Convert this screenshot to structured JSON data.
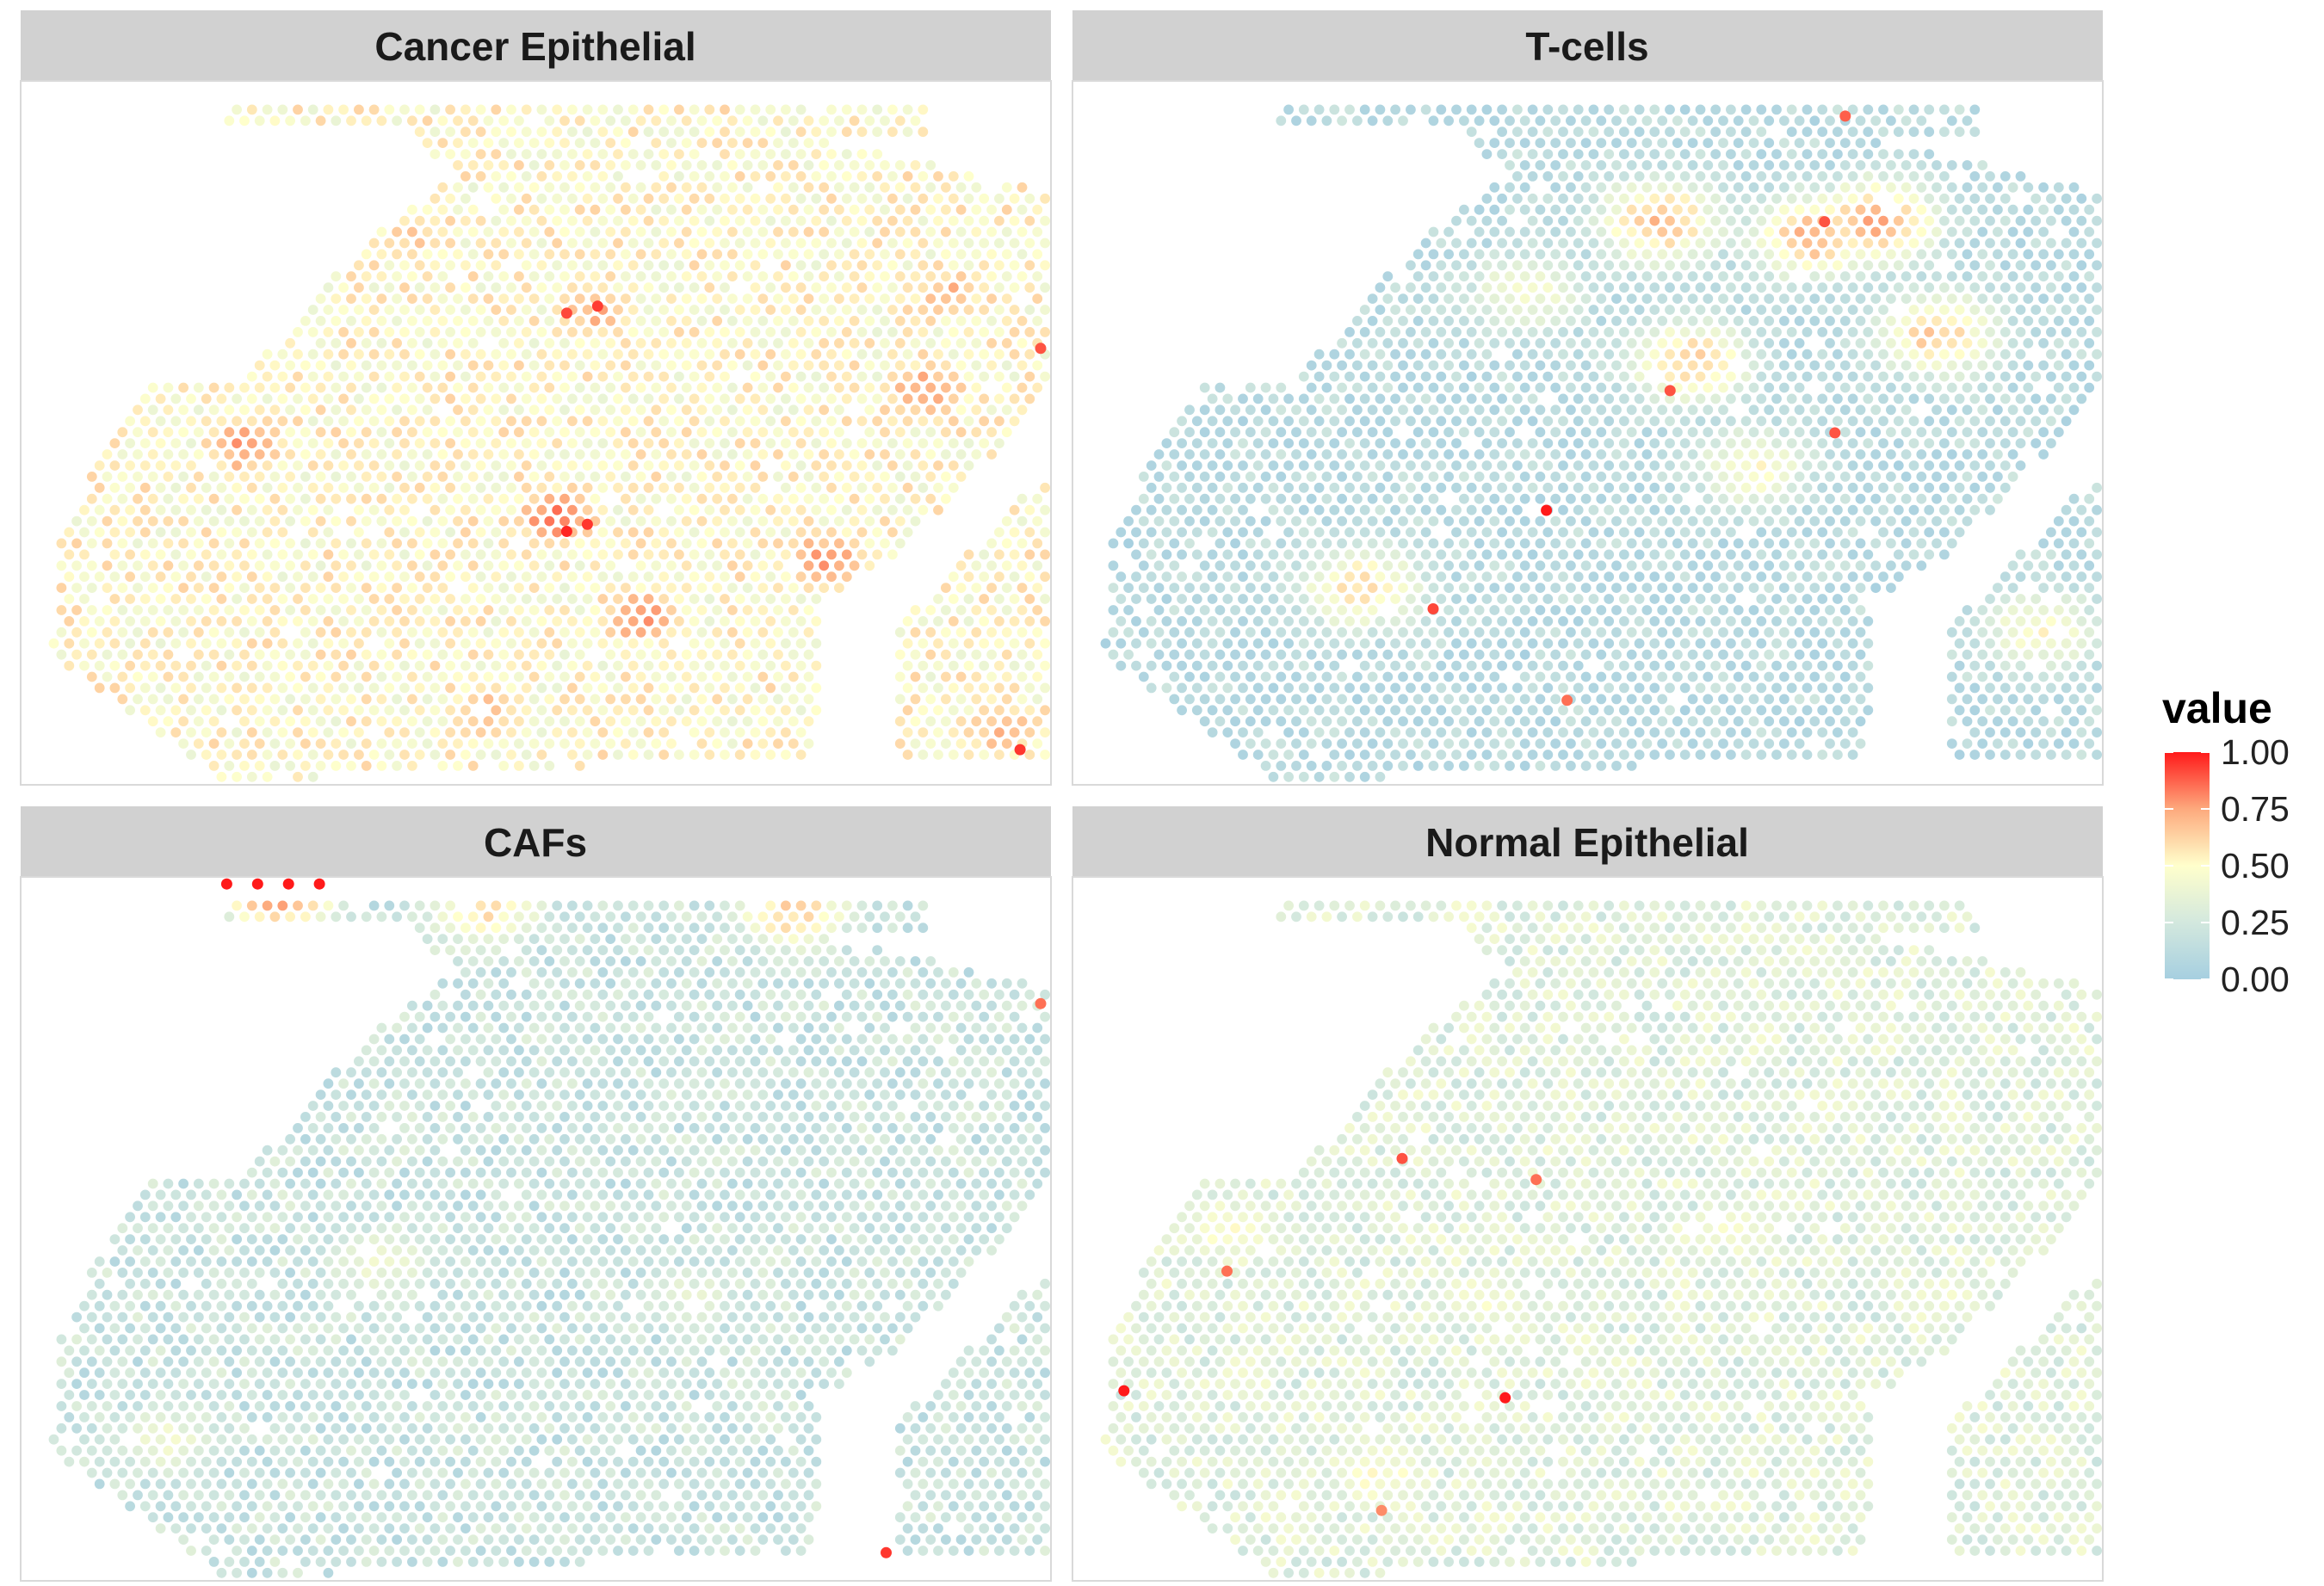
{
  "chart_data": {
    "type": "scatter",
    "description_kind": "faceted spatial spot map",
    "facets": [
      "Cancer Epithelial",
      "T-cells",
      "CAFs",
      "Normal Epithelial"
    ],
    "facet_grid": {
      "rows": 2,
      "cols": 2
    },
    "color_scale": {
      "title": "value",
      "limits": [
        0,
        1
      ],
      "breaks": [
        0,
        0.25,
        0.5,
        0.75,
        1
      ],
      "break_labels": [
        "0.00",
        "0.25",
        "0.50",
        "0.75",
        "1.00"
      ],
      "colors": [
        "#a6cfe0",
        "#d3e8de",
        "#ffffcc",
        "#fda97d",
        "#ff1a1a"
      ],
      "legend_position": "right"
    },
    "axes_shown": false,
    "grid": false,
    "panel_background": "#ffffff",
    "panel_border": "#d9d9d9",
    "strip_fill": "#d1d1d1",
    "field_summary": {
      "Cancer Epithelial": {
        "overall_level": 0.5,
        "hotspots": [
          {
            "x": 0.22,
            "y": 0.52,
            "value": 0.78
          },
          {
            "x": 0.52,
            "y": 0.62,
            "value": 0.82
          },
          {
            "x": 0.6,
            "y": 0.76,
            "value": 0.78
          },
          {
            "x": 0.78,
            "y": 0.68,
            "value": 0.78
          },
          {
            "x": 0.56,
            "y": 0.33,
            "value": 0.72
          },
          {
            "x": 0.38,
            "y": 0.22,
            "value": 0.65
          },
          {
            "x": 0.88,
            "y": 0.44,
            "value": 0.78
          },
          {
            "x": 0.9,
            "y": 0.3,
            "value": 0.7
          },
          {
            "x": 0.45,
            "y": 0.9,
            "value": 0.7
          },
          {
            "x": 0.2,
            "y": 0.4,
            "value": 0.68
          },
          {
            "x": 0.95,
            "y": 0.92,
            "value": 0.7
          }
        ]
      },
      "T-cells": {
        "overall_level": 0.1,
        "hotspots": [
          {
            "x": 0.57,
            "y": 0.2,
            "value": 0.7
          },
          {
            "x": 0.78,
            "y": 0.2,
            "value": 0.75
          },
          {
            "x": 0.6,
            "y": 0.4,
            "value": 0.65
          },
          {
            "x": 0.84,
            "y": 0.36,
            "value": 0.65
          },
          {
            "x": 0.28,
            "y": 0.72,
            "value": 0.6
          },
          {
            "x": 0.72,
            "y": 0.22,
            "value": 0.72
          },
          {
            "x": 0.44,
            "y": 0.3,
            "value": 0.45
          },
          {
            "x": 0.66,
            "y": 0.55,
            "value": 0.5
          },
          {
            "x": 0.94,
            "y": 0.78,
            "value": 0.5
          }
        ]
      },
      "CAFs": {
        "overall_level": 0.2,
        "hotspots": [
          {
            "x": 0.25,
            "y": 0.01,
            "value": 0.9
          },
          {
            "x": 0.45,
            "y": 0.04,
            "value": 0.6
          },
          {
            "x": 0.75,
            "y": 0.05,
            "value": 0.62
          },
          {
            "x": 0.14,
            "y": 0.8,
            "value": 0.4
          },
          {
            "x": 0.65,
            "y": 0.6,
            "value": 0.35
          },
          {
            "x": 0.35,
            "y": 0.55,
            "value": 0.4
          }
        ]
      },
      "Normal Epithelial": {
        "overall_level": 0.32,
        "hotspots": [
          {
            "x": 0.15,
            "y": 0.5,
            "value": 0.5
          },
          {
            "x": 0.4,
            "y": 0.6,
            "value": 0.45
          },
          {
            "x": 0.3,
            "y": 0.85,
            "value": 0.5
          },
          {
            "x": 0.65,
            "y": 0.5,
            "value": 0.45
          },
          {
            "x": 0.85,
            "y": 0.6,
            "value": 0.4
          }
        ]
      }
    },
    "highlight_spots": {
      "Cancer Epithelial": [
        {
          "x": 0.53,
          "y": 0.64,
          "value": 0.98
        },
        {
          "x": 0.55,
          "y": 0.63,
          "value": 0.95
        },
        {
          "x": 0.56,
          "y": 0.32,
          "value": 0.94
        },
        {
          "x": 0.97,
          "y": 0.95,
          "value": 0.95
        },
        {
          "x": 0.53,
          "y": 0.33,
          "value": 0.92
        },
        {
          "x": 0.99,
          "y": 0.38,
          "value": 0.9
        }
      ],
      "T-cells": [
        {
          "x": 0.46,
          "y": 0.61,
          "value": 1.0
        },
        {
          "x": 0.35,
          "y": 0.75,
          "value": 0.92
        },
        {
          "x": 0.73,
          "y": 0.2,
          "value": 0.9
        },
        {
          "x": 0.75,
          "y": 0.05,
          "value": 0.88
        },
        {
          "x": 0.58,
          "y": 0.44,
          "value": 0.9
        },
        {
          "x": 0.74,
          "y": 0.5,
          "value": 0.9
        },
        {
          "x": 0.48,
          "y": 0.88,
          "value": 0.85
        }
      ],
      "CAFs": [
        {
          "x": 0.2,
          "y": 0.01,
          "value": 1.0
        },
        {
          "x": 0.23,
          "y": 0.01,
          "value": 1.0
        },
        {
          "x": 0.26,
          "y": 0.01,
          "value": 1.0
        },
        {
          "x": 0.29,
          "y": 0.01,
          "value": 1.0
        },
        {
          "x": 0.84,
          "y": 0.96,
          "value": 0.95
        },
        {
          "x": 0.99,
          "y": 0.18,
          "value": 0.85
        }
      ],
      "Normal Epithelial": [
        {
          "x": 0.42,
          "y": 0.74,
          "value": 1.0
        },
        {
          "x": 0.05,
          "y": 0.73,
          "value": 1.0
        },
        {
          "x": 0.32,
          "y": 0.4,
          "value": 0.9
        },
        {
          "x": 0.15,
          "y": 0.56,
          "value": 0.85
        },
        {
          "x": 0.45,
          "y": 0.43,
          "value": 0.85
        },
        {
          "x": 0.3,
          "y": 0.9,
          "value": 0.8
        }
      ]
    }
  }
}
